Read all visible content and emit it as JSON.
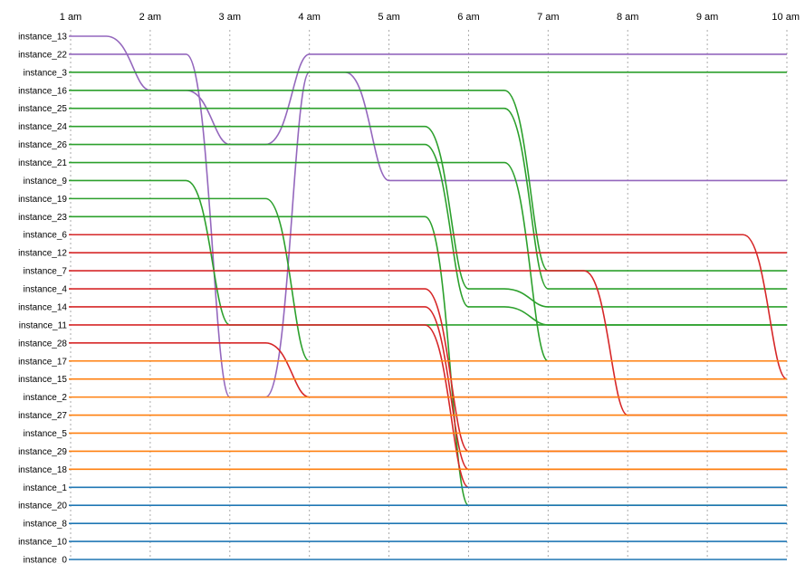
{
  "chart_data": {
    "type": "line",
    "title": "",
    "xlabel": "",
    "ylabel": "",
    "x": [
      "1 am",
      "2 am",
      "3 am",
      "4 am",
      "5 am",
      "6 am",
      "7 am",
      "8 am",
      "9 am",
      "10 am"
    ],
    "grid": "vertical dotted lines at each hour",
    "colors": {
      "blue": "#1f77b4",
      "orange": "#ff7f0e",
      "green": "#2ca02c",
      "red": "#d62728",
      "purple": "#9467bd"
    },
    "series": [
      {
        "name": "instance_13",
        "color": "purple",
        "values": [
          1,
          4,
          7,
          2,
          2,
          2,
          2,
          2,
          2,
          2
        ]
      },
      {
        "name": "instance_22",
        "color": "purple",
        "values": [
          2,
          2,
          21,
          3,
          9,
          9,
          9,
          9,
          9,
          9
        ]
      },
      {
        "name": "instance_3",
        "color": "green",
        "values": [
          3,
          3,
          3,
          3,
          3,
          3,
          3,
          3,
          3,
          3
        ]
      },
      {
        "name": "instance_16",
        "color": "green",
        "values": [
          4,
          4,
          4,
          4,
          4,
          4,
          14,
          14,
          14,
          14
        ]
      },
      {
        "name": "instance_25",
        "color": "green",
        "values": [
          5,
          5,
          5,
          5,
          5,
          5,
          15,
          15,
          15,
          15
        ]
      },
      {
        "name": "instance_24",
        "color": "green",
        "values": [
          6,
          6,
          6,
          6,
          6,
          15,
          16,
          16,
          16,
          16
        ]
      },
      {
        "name": "instance_26",
        "color": "green",
        "values": [
          7,
          7,
          7,
          7,
          7,
          16,
          17,
          17,
          17,
          17
        ]
      },
      {
        "name": "instance_21",
        "color": "green",
        "values": [
          8,
          8,
          8,
          8,
          8,
          8,
          19,
          19,
          19,
          19
        ]
      },
      {
        "name": "instance_9",
        "color": "green",
        "values": [
          9,
          9,
          17,
          17,
          17,
          17,
          17,
          17,
          17,
          17
        ]
      },
      {
        "name": "instance_19",
        "color": "green",
        "values": [
          10,
          10,
          10,
          19,
          19,
          19,
          19,
          19,
          19,
          19
        ]
      },
      {
        "name": "instance_23",
        "color": "green",
        "values": [
          11,
          11,
          11,
          11,
          11,
          27,
          27,
          27,
          27,
          27
        ]
      },
      {
        "name": "instance_6",
        "color": "red",
        "values": [
          12,
          12,
          12,
          12,
          12,
          12,
          12,
          12,
          12,
          20
        ]
      },
      {
        "name": "instance_12",
        "color": "red",
        "values": [
          13,
          13,
          13,
          13,
          13,
          13,
          13,
          13,
          13,
          13
        ]
      },
      {
        "name": "instance_7",
        "color": "red",
        "values": [
          14,
          14,
          14,
          14,
          14,
          14,
          14,
          22,
          22,
          22
        ]
      },
      {
        "name": "instance_4",
        "color": "red",
        "values": [
          15,
          15,
          15,
          15,
          15,
          24,
          24,
          24,
          24,
          24
        ]
      },
      {
        "name": "instance_14",
        "color": "red",
        "values": [
          16,
          16,
          16,
          16,
          16,
          25,
          25,
          25,
          25,
          25
        ]
      },
      {
        "name": "instance_11",
        "color": "red",
        "values": [
          17,
          17,
          17,
          17,
          17,
          26,
          26,
          26,
          26,
          26
        ]
      },
      {
        "name": "instance_28",
        "color": "red",
        "values": [
          18,
          18,
          18,
          21,
          21,
          21,
          21,
          21,
          21,
          21
        ]
      },
      {
        "name": "instance_17",
        "color": "orange",
        "values": [
          19,
          19,
          19,
          19,
          19,
          19,
          19,
          19,
          19,
          19
        ]
      },
      {
        "name": "instance_15",
        "color": "orange",
        "values": [
          20,
          20,
          20,
          20,
          20,
          20,
          20,
          20,
          20,
          20
        ]
      },
      {
        "name": "instance_2",
        "color": "orange",
        "values": [
          21,
          21,
          21,
          21,
          21,
          21,
          21,
          21,
          21,
          21
        ]
      },
      {
        "name": "instance_27",
        "color": "orange",
        "values": [
          22,
          22,
          22,
          22,
          22,
          22,
          22,
          22,
          22,
          22
        ]
      },
      {
        "name": "instance_5",
        "color": "orange",
        "values": [
          23,
          23,
          23,
          23,
          23,
          23,
          23,
          23,
          23,
          23
        ]
      },
      {
        "name": "instance_29",
        "color": "orange",
        "values": [
          24,
          24,
          24,
          24,
          24,
          24,
          24,
          24,
          24,
          24
        ]
      },
      {
        "name": "instance_18",
        "color": "orange",
        "values": [
          25,
          25,
          25,
          25,
          25,
          25,
          25,
          25,
          25,
          25
        ]
      },
      {
        "name": "instance_1",
        "color": "blue",
        "values": [
          26,
          26,
          26,
          26,
          26,
          26,
          26,
          26,
          26,
          26
        ]
      },
      {
        "name": "instance_20",
        "color": "blue",
        "values": [
          27,
          27,
          27,
          27,
          27,
          27,
          27,
          27,
          27,
          27
        ]
      },
      {
        "name": "instance_8",
        "color": "blue",
        "values": [
          28,
          28,
          28,
          28,
          28,
          28,
          28,
          28,
          28,
          28
        ]
      },
      {
        "name": "instance_10",
        "color": "blue",
        "values": [
          29,
          29,
          29,
          29,
          29,
          29,
          29,
          29,
          29,
          29
        ]
      },
      {
        "name": "instance_0",
        "color": "blue",
        "values": [
          30,
          30,
          30,
          30,
          30,
          30,
          30,
          30,
          30,
          30
        ]
      }
    ]
  }
}
